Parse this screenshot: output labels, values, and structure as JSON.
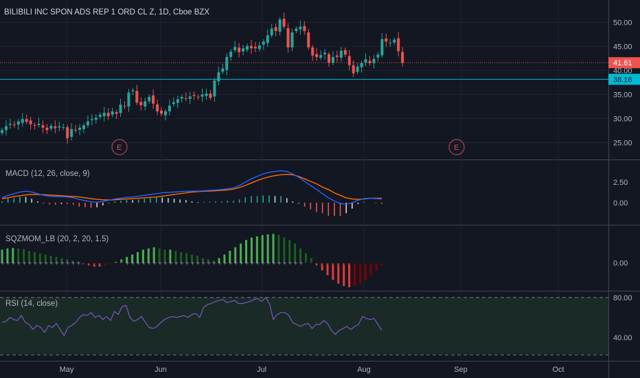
{
  "chart_data": {
    "type": "candlestick",
    "title": "BILIBILI INC SPON ADS REP 1 ORD CL Z, 1D, Cboe BZX",
    "x_labels": [
      "May",
      "Jun",
      "Jul",
      "Aug",
      "Sep",
      "Oct"
    ],
    "earnings_marker": "E",
    "price": {
      "ylim": [
        22.5,
        53.5
      ],
      "ticks": [
        "25.00",
        "30.00",
        "35.00",
        "40.00",
        "45.00",
        "50.00"
      ],
      "tick_values": [
        25,
        30,
        35,
        40,
        45,
        50
      ],
      "last_price": "41.61",
      "last_price_value": 41.61,
      "level": "38.16",
      "level_value": 38.16,
      "closes": [
        27.6,
        28.4,
        28.9,
        28.6,
        29.4,
        29.9,
        29.3,
        28.8,
        28.5,
        28.9,
        28.1,
        27.6,
        28.5,
        28.0,
        28.4,
        28.2,
        25.9,
        27.8,
        27.5,
        28.1,
        28.6,
        29.4,
        29.9,
        30.2,
        30.8,
        31.2,
        30.5,
        31.5,
        31.0,
        32.9,
        32.5,
        35.4,
        35.9,
        33.3,
        32.8,
        33.6,
        34.5,
        33.1,
        31.5,
        31.0,
        31.5,
        32.7,
        33.4,
        34.0,
        34.5,
        34.1,
        34.6,
        34.7,
        34.4,
        35.0,
        35.2,
        34.3,
        37.9,
        39.6,
        40.4,
        42.8,
        43.9,
        44.9,
        43.8,
        44.6,
        45.1,
        44.6,
        44.6,
        45.2,
        46.0,
        47.3,
        48.7,
        48.2,
        50.6,
        49.1,
        44.8,
        47.9,
        48.7,
        49.1,
        48.2,
        44.8,
        43.1,
        42.8,
        43.2,
        43.7,
        41.6,
        42.8,
        42.8,
        44.1,
        43.3,
        41.1,
        39.4,
        40.8,
        41.5,
        42.3,
        41.5,
        42.4,
        43.3,
        46.5,
        46.0,
        45.8,
        46.4,
        44.0,
        41.6
      ]
    },
    "macd": {
      "label": "MACD (12, 26, close, 9)",
      "ylim": [
        -2.1,
        4.6
      ],
      "ticks": [
        "0.00",
        "2.50"
      ],
      "tick_values": [
        0,
        2.5
      ],
      "macd": [
        0.6,
        0.9,
        1.1,
        1.3,
        1.4,
        1.3,
        1.1,
        0.9,
        0.8,
        0.75,
        0.75,
        0.7,
        0.6,
        0.4,
        0.25,
        0.1,
        0.05,
        0.15,
        0.3,
        0.45,
        0.55,
        0.65,
        0.7,
        0.8,
        0.9,
        1.0,
        1.1,
        1.2,
        1.25,
        1.3,
        1.35,
        1.4,
        1.4,
        1.4,
        1.45,
        1.5,
        1.55,
        1.6,
        1.7,
        1.8,
        2.1,
        2.5,
        2.9,
        3.2,
        3.5,
        3.7,
        3.8,
        3.9,
        3.8,
        3.5,
        3.1,
        2.6,
        2.1,
        1.6,
        1.1,
        0.6,
        0.2,
        -0.1,
        -0.2,
        0.0,
        0.3,
        0.5,
        0.55,
        0.5,
        0.45
      ],
      "signal": [
        0.5,
        0.6,
        0.75,
        0.85,
        0.95,
        1.0,
        1.0,
        0.97,
        0.93,
        0.9,
        0.85,
        0.8,
        0.75,
        0.7,
        0.6,
        0.5,
        0.4,
        0.35,
        0.33,
        0.35,
        0.4,
        0.45,
        0.5,
        0.55,
        0.6,
        0.65,
        0.7,
        0.8,
        0.9,
        1.0,
        1.1,
        1.2,
        1.3,
        1.35,
        1.4,
        1.42,
        1.45,
        1.5,
        1.55,
        1.65,
        1.85,
        2.1,
        2.4,
        2.7,
        2.95,
        3.15,
        3.3,
        3.4,
        3.45,
        3.4,
        3.2,
        2.9,
        2.6,
        2.3,
        1.9,
        1.6,
        1.2,
        0.9,
        0.6,
        0.45,
        0.4,
        0.45,
        0.55,
        0.55,
        0.55
      ]
    },
    "sqzmom": {
      "label": "SQZMOM_LB (20, 2, 20, 1.5)",
      "ylim": [
        -1.0,
        1.35
      ],
      "ticks": [
        "0.00"
      ],
      "tick_values": [
        0
      ],
      "values": [
        0.55,
        0.6,
        0.62,
        0.6,
        0.58,
        0.5,
        0.45,
        0.4,
        0.35,
        0.3,
        0.25,
        0.2,
        0.15,
        0.1,
        0.05,
        -0.05,
        -0.1,
        -0.15,
        -0.15,
        -0.1,
        -0.05,
        0.05,
        0.15,
        0.25,
        0.35,
        0.45,
        0.55,
        0.6,
        0.65,
        0.6,
        0.55,
        0.55,
        0.5,
        0.45,
        0.4,
        0.35,
        0.3,
        0.2,
        0.15,
        0.1,
        0.2,
        0.35,
        0.5,
        0.65,
        0.8,
        0.95,
        1.05,
        1.1,
        1.15,
        1.18,
        1.2,
        1.15,
        1.05,
        0.95,
        0.8,
        0.6,
        0.4,
        0.2,
        -0.1,
        -0.3,
        -0.5,
        -0.7,
        -0.85,
        -0.95,
        -1.0,
        -0.95,
        -0.85,
        -0.7,
        -0.5,
        -0.3,
        -0.1
      ]
    },
    "rsi": {
      "label": "RSI (14, close)",
      "ylim": [
        20,
        82
      ],
      "ticks": [
        "40.00",
        "80.00"
      ],
      "tick_values": [
        40,
        80
      ],
      "bands": [
        30,
        70
      ],
      "values": [
        55,
        56,
        60,
        58,
        57,
        62,
        55,
        53,
        48,
        52,
        50,
        45,
        52,
        50,
        54,
        48,
        42,
        50,
        52,
        55,
        60,
        63,
        62,
        65,
        60,
        62,
        58,
        61,
        57,
        66,
        63,
        71,
        72,
        60,
        56,
        58,
        61,
        55,
        50,
        49,
        51,
        55,
        58,
        60,
        61,
        60,
        61,
        62,
        60,
        63,
        64,
        60,
        70,
        73,
        74,
        76,
        77,
        78,
        75,
        76,
        77,
        74,
        74,
        75,
        76,
        78,
        79,
        76,
        80,
        74,
        58,
        63,
        65,
        65,
        62,
        55,
        53,
        51,
        53,
        54,
        49,
        53,
        53,
        57,
        54,
        47,
        43,
        47,
        49,
        51,
        48,
        51,
        53,
        61,
        59,
        58,
        59,
        53,
        47
      ]
    },
    "colors": {
      "up": "#26a69a",
      "down": "#ef5350",
      "macd": "#2962ff",
      "signal": "#ff6d00",
      "rsi": "#7e57c2",
      "level": "#00bcd4"
    }
  }
}
